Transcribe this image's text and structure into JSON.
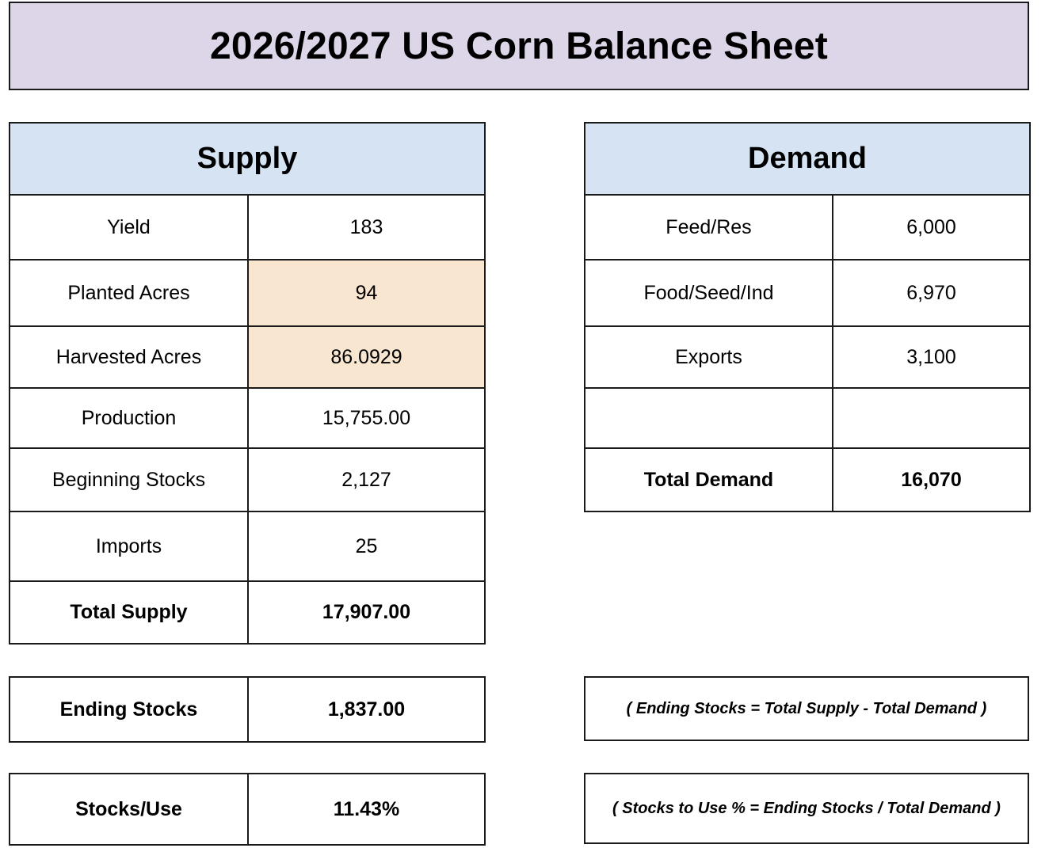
{
  "title": "2026/2027 US Corn Balance Sheet",
  "colors": {
    "title_bg": "#dcd6e8",
    "section_header_bg": "#d5e3f3",
    "highlight_cell_bg": "#f8e6d0",
    "border": "#1a1a1a"
  },
  "supply": {
    "header": "Supply",
    "rows": [
      {
        "label": "Yield",
        "value": "183",
        "highlight": false,
        "bold": false
      },
      {
        "label": "Planted Acres",
        "value": "94",
        "highlight": true,
        "bold": false
      },
      {
        "label": "Harvested Acres",
        "value": "86.0929",
        "highlight": true,
        "bold": false
      },
      {
        "label": "Production",
        "value": "15,755.00",
        "highlight": false,
        "bold": false
      },
      {
        "label": "Beginning Stocks",
        "value": "2,127",
        "highlight": false,
        "bold": false
      },
      {
        "label": "Imports",
        "value": "25",
        "highlight": false,
        "bold": false
      },
      {
        "label": "Total Supply",
        "value": "17,907.00",
        "highlight": false,
        "bold": true
      }
    ]
  },
  "demand": {
    "header": "Demand",
    "rows": [
      {
        "label": "Feed/Res",
        "value": "6,000",
        "bold": false
      },
      {
        "label": "Food/Seed/Ind",
        "value": "6,970",
        "bold": false
      },
      {
        "label": "Exports",
        "value": "3,100",
        "bold": false
      },
      {
        "label": "",
        "value": "",
        "bold": false
      },
      {
        "label": "Total Demand",
        "value": "16,070",
        "bold": true
      }
    ]
  },
  "ending_stocks": {
    "label": "Ending Stocks",
    "value": "1,837.00",
    "formula": "( Ending Stocks = Total Supply - Total Demand )"
  },
  "stocks_use": {
    "label": "Stocks/Use",
    "value": "11.43%",
    "formula": "( Stocks to Use % = Ending Stocks / Total Demand )"
  }
}
